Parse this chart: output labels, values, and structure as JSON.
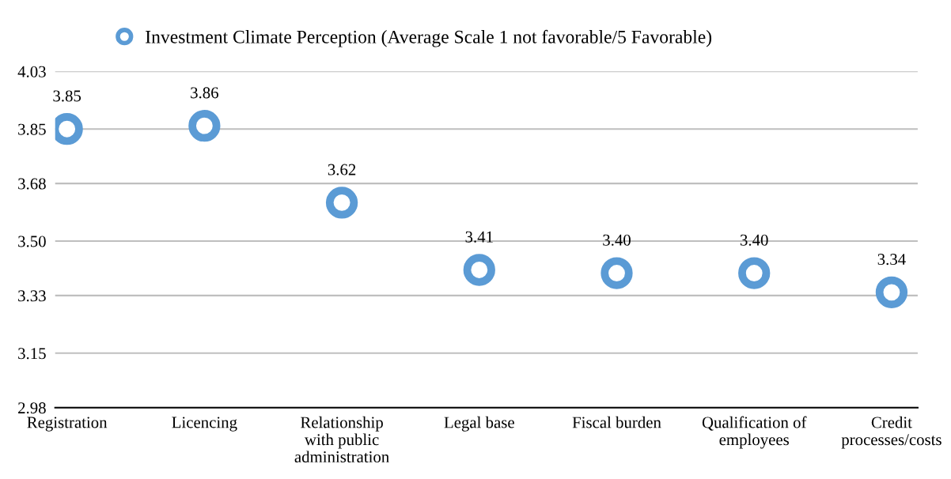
{
  "chart_data": {
    "type": "scatter",
    "categories": [
      "Registration",
      "Licencing",
      "Relationship\nwith public\nadministration",
      "Legal base",
      "Fiscal burden",
      "Qualification of\nemployees",
      "Credit\nprocesses/costs"
    ],
    "series": [
      {
        "name": "Investment Climate Perception (Average Scale 1 not favorable/5 Favorable)",
        "color": "#5b9bd5",
        "values": [
          3.85,
          3.86,
          3.62,
          3.41,
          3.4,
          3.4,
          3.34
        ],
        "value_labels": [
          "3.85",
          "3.86",
          "3.62",
          "3.41",
          "3.40",
          "3.40",
          "3.34"
        ]
      }
    ],
    "ylim": [
      2.98,
      4.03
    ],
    "yticks": [
      2.98,
      3.15,
      3.33,
      {
        "value": 3.5,
        "label": "3.50"
      },
      3.68,
      3.85,
      4.03
    ],
    "grid": "y",
    "legend": "top",
    "marker": "circle"
  }
}
